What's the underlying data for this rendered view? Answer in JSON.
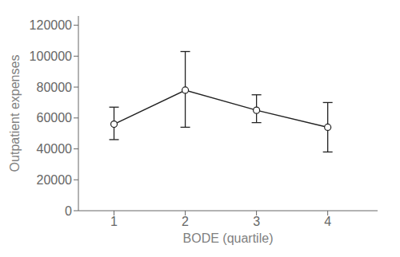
{
  "chart_data": {
    "type": "line",
    "xlabel": "BODE (quartile)",
    "ylabel": "Outpatient expenses",
    "x": [
      1,
      2,
      3,
      4
    ],
    "values": [
      56000,
      78000,
      65000,
      54000
    ],
    "yerr_lower": [
      10000,
      24000,
      8000,
      16000
    ],
    "yerr_upper": [
      11000,
      25000,
      10000,
      16000
    ],
    "xlim": [
      0.5,
      4.7
    ],
    "ylim": [
      0,
      126000
    ],
    "xticks": [
      1,
      2,
      3,
      4
    ],
    "yticks": [
      0,
      20000,
      40000,
      60000,
      80000,
      100000,
      120000
    ],
    "color": "#222222",
    "marker": "circle",
    "line_style": "solid",
    "grid": false
  }
}
